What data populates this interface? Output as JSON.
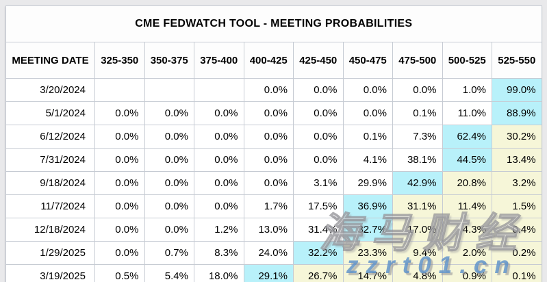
{
  "title": "CME FEDWATCH TOOL - MEETING PROBABILITIES",
  "colors": {
    "cyan_highlight": "#b8f1fa",
    "yellow_highlight": "#f6f6d8",
    "border": "#c6cbd3"
  },
  "table": {
    "columns": [
      "MEETING DATE",
      "325-350",
      "350-375",
      "375-400",
      "400-425",
      "425-450",
      "450-475",
      "475-500",
      "500-525",
      "525-550"
    ],
    "rows": [
      {
        "date": "3/20/2024",
        "values": [
          "",
          "",
          "",
          "0.0%",
          "0.0%",
          "0.0%",
          "0.0%",
          "1.0%",
          "99.0%"
        ],
        "colors": [
          "",
          "",
          "",
          "",
          "",
          "",
          "",
          "",
          "cyan"
        ]
      },
      {
        "date": "5/1/2024",
        "values": [
          "0.0%",
          "0.0%",
          "0.0%",
          "0.0%",
          "0.0%",
          "0.0%",
          "0.1%",
          "11.0%",
          "88.9%"
        ],
        "colors": [
          "",
          "",
          "",
          "",
          "",
          "",
          "",
          "",
          "cyan"
        ]
      },
      {
        "date": "6/12/2024",
        "values": [
          "0.0%",
          "0.0%",
          "0.0%",
          "0.0%",
          "0.0%",
          "0.1%",
          "7.3%",
          "62.4%",
          "30.2%"
        ],
        "colors": [
          "",
          "",
          "",
          "",
          "",
          "",
          "",
          "cyan",
          "yellow"
        ]
      },
      {
        "date": "7/31/2024",
        "values": [
          "0.0%",
          "0.0%",
          "0.0%",
          "0.0%",
          "0.0%",
          "4.1%",
          "38.1%",
          "44.5%",
          "13.4%"
        ],
        "colors": [
          "",
          "",
          "",
          "",
          "",
          "",
          "",
          "cyan",
          "yellow"
        ]
      },
      {
        "date": "9/18/2024",
        "values": [
          "0.0%",
          "0.0%",
          "0.0%",
          "0.0%",
          "3.1%",
          "29.9%",
          "42.9%",
          "20.8%",
          "3.2%"
        ],
        "colors": [
          "",
          "",
          "",
          "",
          "",
          "",
          "cyan",
          "yellow",
          "yellow"
        ]
      },
      {
        "date": "11/7/2024",
        "values": [
          "0.0%",
          "0.0%",
          "0.0%",
          "1.7%",
          "17.5%",
          "36.9%",
          "31.1%",
          "11.4%",
          "1.5%"
        ],
        "colors": [
          "",
          "",
          "",
          "",
          "",
          "cyan",
          "yellow",
          "yellow",
          "yellow"
        ]
      },
      {
        "date": "12/18/2024",
        "values": [
          "0.0%",
          "0.0%",
          "1.2%",
          "13.0%",
          "31.4%",
          "32.7%",
          "17.0%",
          "4.3%",
          "0.4%"
        ],
        "colors": [
          "",
          "",
          "",
          "",
          "",
          "cyan",
          "yellow",
          "yellow",
          "yellow"
        ]
      },
      {
        "date": "1/29/2025",
        "values": [
          "0.0%",
          "0.7%",
          "8.3%",
          "24.0%",
          "32.2%",
          "23.3%",
          "9.4%",
          "2.0%",
          "0.2%"
        ],
        "colors": [
          "",
          "",
          "",
          "",
          "cyan",
          "yellow",
          "yellow",
          "yellow",
          "yellow"
        ]
      },
      {
        "date": "3/19/2025",
        "values": [
          "0.5%",
          "5.4%",
          "18.0%",
          "29.1%",
          "26.7%",
          "14.7%",
          "4.8%",
          "0.9%",
          "0.1%"
        ],
        "colors": [
          "",
          "",
          "",
          "cyan",
          "yellow",
          "yellow",
          "yellow",
          "yellow",
          "yellow"
        ]
      }
    ]
  },
  "watermark": {
    "cn_text": "海马财经",
    "site_text": "zzrt01.cn"
  }
}
